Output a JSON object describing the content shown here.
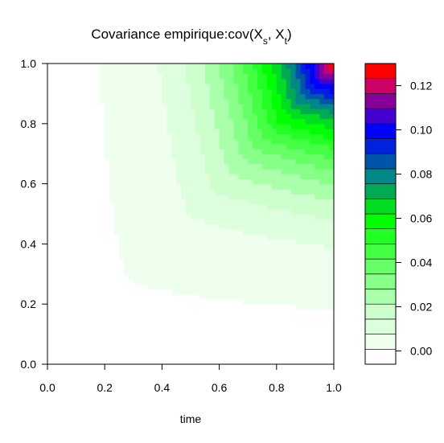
{
  "chart_data": {
    "type": "heatmap",
    "title": {
      "main": "Covariance empirique:cov(X",
      "sub1": "s",
      "mid": ", X",
      "sub2": "t",
      "end": ")"
    },
    "xlabel": "time",
    "ylabel": "",
    "xlim": [
      0,
      1
    ],
    "ylim": [
      0,
      1
    ],
    "x_ticks": [
      "0.0",
      "0.2",
      "0.4",
      "0.6",
      "0.8",
      "1.0"
    ],
    "y_ticks": [
      "0.0",
      "0.2",
      "0.4",
      "0.6",
      "0.8",
      "1.0"
    ],
    "grid": false,
    "function": "cov(s,t) = 0.13 * min(s,t)^2 * s * t",
    "levels": {
      "zlim": [
        -0.006,
        0.13
      ],
      "count": 20,
      "colors": [
        "#ffffff",
        "#eeffee",
        "#ddffdd",
        "#ccffcc",
        "#aaffaa",
        "#88ff88",
        "#66ff66",
        "#44ff44",
        "#22ff22",
        "#00ff00",
        "#00dd22",
        "#00aa55",
        "#008888",
        "#0055aa",
        "#0022dd",
        "#0000ff",
        "#4400cc",
        "#880099",
        "#cc0066",
        "#ff0000"
      ]
    },
    "colorbar": {
      "ticks": [
        "0.00",
        "0.02",
        "0.04",
        "0.06",
        "0.08",
        "0.10",
        "0.12"
      ],
      "tick_values": [
        0.0,
        0.02,
        0.04,
        0.06,
        0.08,
        0.1,
        0.12
      ],
      "legend_position": "right"
    }
  }
}
